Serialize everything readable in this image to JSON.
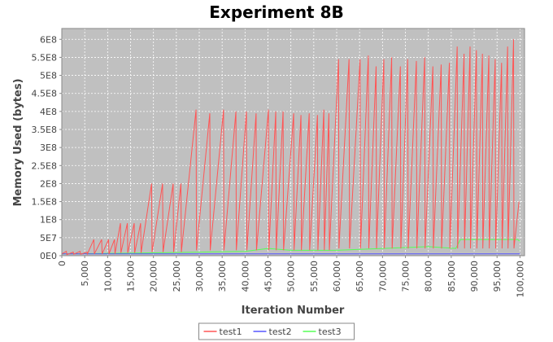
{
  "chart_data": {
    "type": "line",
    "title": "Experiment 8B",
    "x_label": "Iteration Number",
    "y_label": "Memory Used (bytes)",
    "xlim": [
      0,
      101000
    ],
    "ylim": [
      0,
      630000000
    ],
    "grid": true,
    "legend": "bottom",
    "xticks": [
      {
        "value": 0,
        "label": "0"
      },
      {
        "value": 5000,
        "label": "5,000"
      },
      {
        "value": 10000,
        "label": "10,000"
      },
      {
        "value": 15000,
        "label": "15,000"
      },
      {
        "value": 20000,
        "label": "20,000"
      },
      {
        "value": 25000,
        "label": "25,000"
      },
      {
        "value": 30000,
        "label": "30,000"
      },
      {
        "value": 35000,
        "label": "35,000"
      },
      {
        "value": 40000,
        "label": "40,000"
      },
      {
        "value": 45000,
        "label": "45,000"
      },
      {
        "value": 50000,
        "label": "50,000"
      },
      {
        "value": 55000,
        "label": "55,000"
      },
      {
        "value": 60000,
        "label": "60,000"
      },
      {
        "value": 65000,
        "label": "65,000"
      },
      {
        "value": 70000,
        "label": "70,000"
      },
      {
        "value": 75000,
        "label": "75,000"
      },
      {
        "value": 80000,
        "label": "80,000"
      },
      {
        "value": 85000,
        "label": "85,000"
      },
      {
        "value": 90000,
        "label": "90,000"
      },
      {
        "value": 95000,
        "label": "95,000"
      },
      {
        "value": 100000,
        "label": "100,000"
      }
    ],
    "yticks": [
      {
        "value": 0,
        "label": "0E0"
      },
      {
        "value": 50000000,
        "label": "5E7"
      },
      {
        "value": 100000000,
        "label": "1E8"
      },
      {
        "value": 150000000,
        "label": "1.5E8"
      },
      {
        "value": 200000000,
        "label": "2E8"
      },
      {
        "value": 250000000,
        "label": "2.5E8"
      },
      {
        "value": 300000000,
        "label": "3E8"
      },
      {
        "value": 350000000,
        "label": "3.5E8"
      },
      {
        "value": 400000000,
        "label": "4E8"
      },
      {
        "value": 450000000,
        "label": "4.5E8"
      },
      {
        "value": 500000000,
        "label": "5E8"
      },
      {
        "value": 550000000,
        "label": "5.5E8"
      },
      {
        "value": 600000000,
        "label": "6E8"
      }
    ],
    "series": [
      {
        "name": "test1",
        "color": "#ff5555",
        "x": [
          0,
          1000,
          1100,
          2500,
          2600,
          4000,
          4100,
          5500,
          5600,
          7000,
          7100,
          8700,
          8800,
          10200,
          10300,
          11500,
          11600,
          12800,
          12900,
          14300,
          14400,
          15800,
          15900,
          17200,
          17300,
          19600,
          19700,
          22000,
          22100,
          24300,
          24400,
          26000,
          26100,
          29300,
          29400,
          32300,
          32400,
          35300,
          35400,
          38000,
          38100,
          40300,
          40400,
          42400,
          42500,
          45100,
          45200,
          46700,
          46800,
          48300,
          48400,
          50600,
          50700,
          52200,
          52300,
          54000,
          54100,
          55800,
          55900,
          57200,
          57300,
          58300,
          58400,
          60400,
          60500,
          62700,
          62800,
          65100,
          65200,
          66900,
          67000,
          68600,
          68700,
          70300,
          70400,
          72000,
          72100,
          73900,
          74000,
          75500,
          75600,
          77400,
          77500,
          79200,
          79300,
          81000,
          81100,
          82800,
          82900,
          84600,
          84700,
          86300,
          86400,
          87800,
          87900,
          89100,
          89200,
          90500,
          90600,
          91800,
          91900,
          93200,
          93300,
          94600,
          94700,
          96000,
          96100,
          97300,
          97400,
          98600,
          98700,
          99800
        ],
        "values": [
          5000000,
          12000000,
          3000000,
          10000000,
          4000000,
          12000000,
          4000000,
          10000000,
          5000000,
          45000000,
          5000000,
          45000000,
          5000000,
          45000000,
          5000000,
          45000000,
          5000000,
          90000000,
          8000000,
          90000000,
          8000000,
          90000000,
          8000000,
          90000000,
          8000000,
          200000000,
          10000000,
          200000000,
          10000000,
          200000000,
          10000000,
          200000000,
          10000000,
          405000000,
          15000000,
          395000000,
          15000000,
          405000000,
          15000000,
          400000000,
          15000000,
          400000000,
          15000000,
          395000000,
          15000000,
          405000000,
          15000000,
          400000000,
          15000000,
          400000000,
          15000000,
          395000000,
          15000000,
          390000000,
          15000000,
          395000000,
          15000000,
          390000000,
          15000000,
          405000000,
          15000000,
          395000000,
          15000000,
          545000000,
          20000000,
          545000000,
          20000000,
          545000000,
          20000000,
          555000000,
          20000000,
          525000000,
          20000000,
          545000000,
          20000000,
          550000000,
          20000000,
          525000000,
          20000000,
          545000000,
          20000000,
          540000000,
          20000000,
          550000000,
          20000000,
          525000000,
          20000000,
          530000000,
          20000000,
          535000000,
          20000000,
          580000000,
          20000000,
          560000000,
          20000000,
          580000000,
          20000000,
          570000000,
          20000000,
          560000000,
          20000000,
          555000000,
          20000000,
          545000000,
          20000000,
          535000000,
          20000000,
          580000000,
          20000000,
          600000000,
          20000000,
          150000000
        ]
      },
      {
        "name": "test2",
        "color": "#5555ff",
        "x": [
          0,
          100000
        ],
        "values": [
          5000000,
          5000000
        ]
      },
      {
        "name": "test3",
        "color": "#55ff55",
        "x": [
          0,
          20000,
          40000,
          45000,
          50000,
          60000,
          70000,
          80000,
          86000,
          87000,
          90000,
          95000,
          99500,
          100000
        ],
        "values": [
          5000000,
          8000000,
          12000000,
          20000000,
          15000000,
          15000000,
          20000000,
          25000000,
          20000000,
          45000000,
          45000000,
          45000000,
          45000000,
          40000000
        ]
      }
    ]
  }
}
